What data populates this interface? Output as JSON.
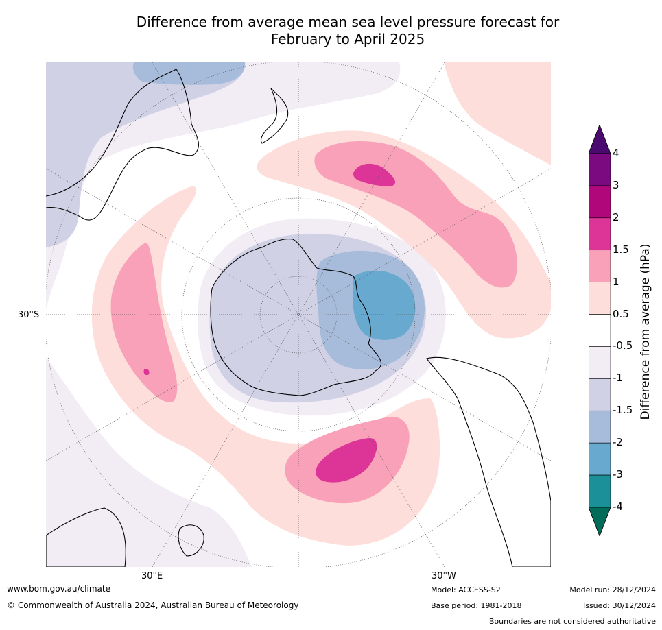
{
  "title_line1": "Difference from average mean sea level pressure forecast for",
  "title_line2": "February to April 2025",
  "map": {
    "projection": "south-polar-stereographic",
    "latitude_label": "30°S",
    "longitude_labels": [
      "30°E",
      "30°W"
    ],
    "colors": {
      "ocean": "#ffffff",
      "land_outline": "#000000",
      "graticule": "#555555"
    }
  },
  "colorbar": {
    "label": "Difference from average (hPa)",
    "tick_labels": [
      "4",
      "3",
      "2",
      "1.5",
      "1",
      "0.5",
      "-0.5",
      "-1",
      "-1.5",
      "-2",
      "-3",
      "-4"
    ],
    "bins": [
      {
        "range": "> 4",
        "color": "#4b0a70"
      },
      {
        "range": "3 to 4",
        "color": "#7b0a80"
      },
      {
        "range": "2 to 3",
        "color": "#b0087a"
      },
      {
        "range": "1.5 to 2",
        "color": "#dd3597"
      },
      {
        "range": "1 to 1.5",
        "color": "#f9a1b9"
      },
      {
        "range": "0.5 to 1",
        "color": "#fddedb"
      },
      {
        "range": "-0.5 to 0.5",
        "color": "#ffffff"
      },
      {
        "range": "-1 to -0.5",
        "color": "#f2ecf5"
      },
      {
        "range": "-1.5 to -1",
        "color": "#d0d1e5"
      },
      {
        "range": "-2 to -1.5",
        "color": "#a6bcda"
      },
      {
        "range": "-3 to -2",
        "color": "#67a9cf"
      },
      {
        "range": "-4 to -3",
        "color": "#1c9099"
      },
      {
        "range": "< -4",
        "color": "#016c59"
      }
    ]
  },
  "footer": {
    "website": "www.bom.gov.au/climate",
    "copyright": "© Commonwealth of Australia 2024, Australian Bureau of Meteorology",
    "model": "Model: ACCESS-S2",
    "base_period": "Base period: 1981-2018",
    "model_run": "Model run: 28/12/2024",
    "issued": "Issued: 30/12/2024",
    "disclaimer": "Boundaries are not considered authoritative"
  }
}
